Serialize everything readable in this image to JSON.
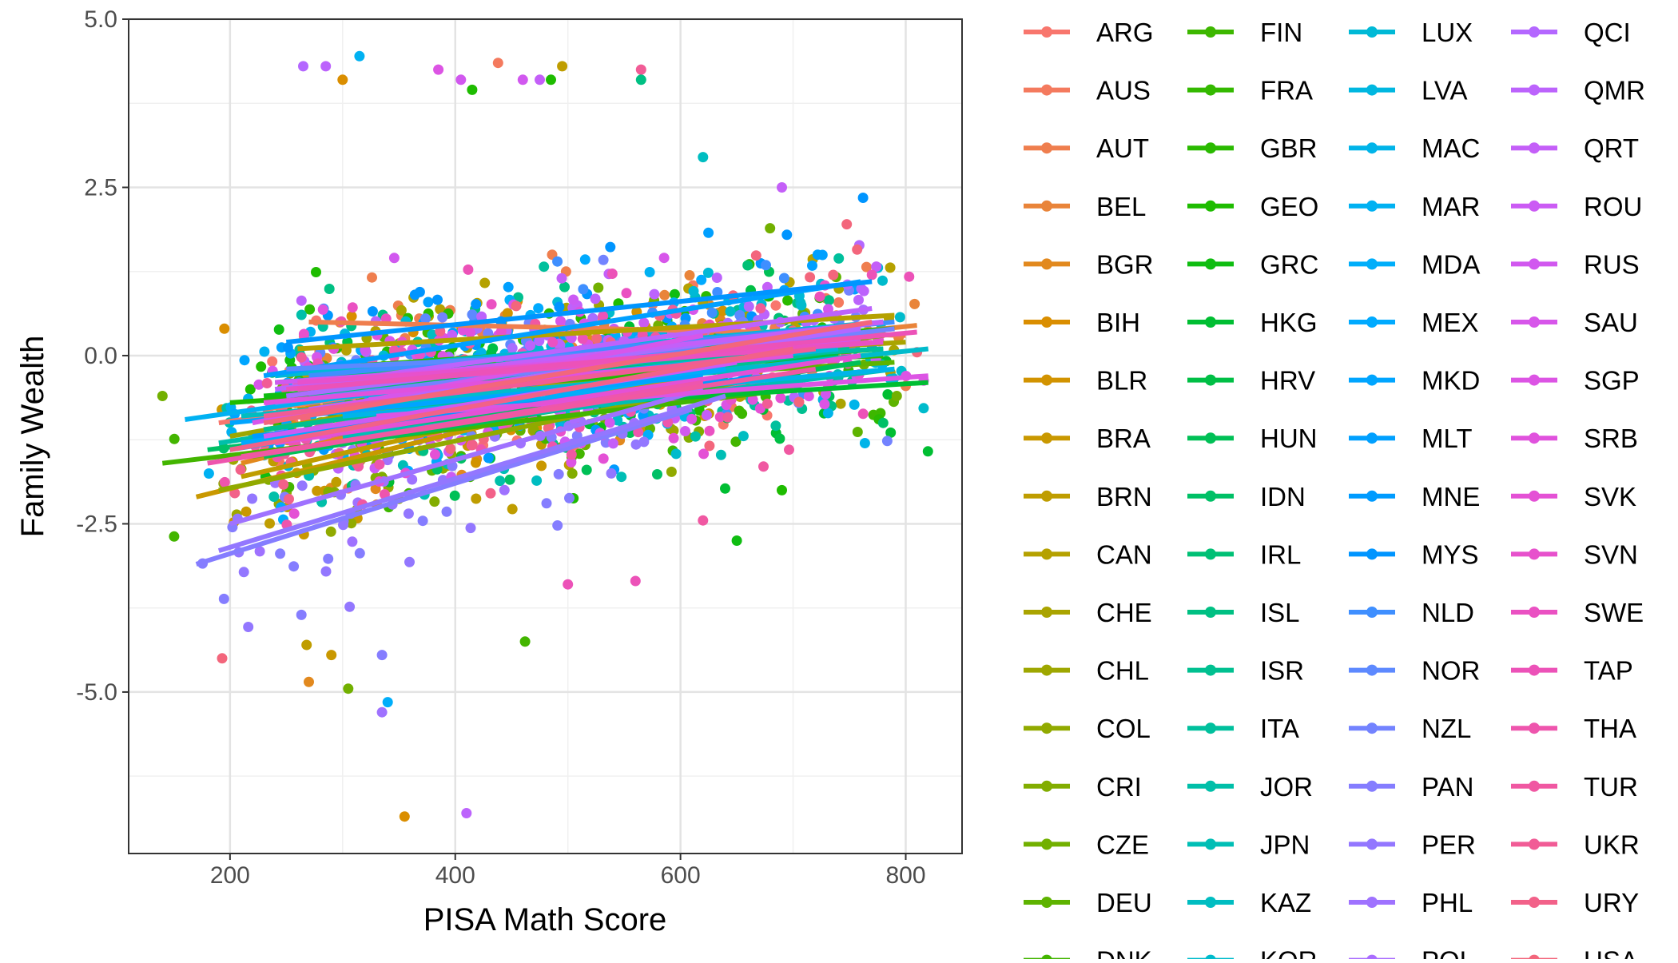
{
  "chart_data": {
    "type": "scatter",
    "title": "",
    "xlabel": "PISA Math Score",
    "ylabel": "Family Wealth",
    "xlim": [
      110,
      850
    ],
    "ylim": [
      -7.4,
      5.0
    ],
    "x_ticks": [
      200,
      400,
      600,
      800
    ],
    "x_tick_labels": [
      "200",
      "400",
      "600",
      "800"
    ],
    "y_ticks": [
      5.0,
      2.5,
      0.0,
      -2.5,
      -5.0
    ],
    "y_tick_labels": [
      "5.0",
      "2.5",
      "0.0",
      "-2.5",
      "-5.0"
    ],
    "grid": true,
    "legend_position": "right",
    "series_note_trend": "each country: points plus a linear fit line",
    "series": [
      {
        "name": "ARG",
        "color": "#F8766D",
        "line": [
          [
            190,
            -1.0
          ],
          [
            690,
            0.2
          ]
        ]
      },
      {
        "name": "AUS",
        "color": "#F47A5E",
        "line": [
          [
            230,
            -0.8
          ],
          [
            780,
            0.5
          ]
        ]
      },
      {
        "name": "AUT",
        "color": "#EF7E4E",
        "line": [
          [
            270,
            0.5
          ],
          [
            800,
            0.3
          ]
        ]
      },
      {
        "name": "BEL",
        "color": "#E98439",
        "line": [
          [
            250,
            -0.5
          ],
          [
            810,
            0.45
          ]
        ]
      },
      {
        "name": "BGR",
        "color": "#E2891E",
        "line": [
          [
            210,
            -1.6
          ],
          [
            640,
            0.2
          ]
        ]
      },
      {
        "name": "BIH",
        "color": "#DA8E00",
        "line": [
          [
            260,
            -0.8
          ],
          [
            620,
            -0.1
          ]
        ]
      },
      {
        "name": "BLR",
        "color": "#D29300",
        "line": [
          [
            230,
            -1.1
          ],
          [
            700,
            0.1
          ]
        ]
      },
      {
        "name": "BRA",
        "color": "#C99800",
        "line": [
          [
            170,
            -2.1
          ],
          [
            630,
            -0.2
          ]
        ]
      },
      {
        "name": "BRN",
        "color": "#BF9D00",
        "line": [
          [
            210,
            -1.8
          ],
          [
            650,
            -0.1
          ]
        ]
      },
      {
        "name": "CAN",
        "color": "#B5A100",
        "line": [
          [
            260,
            0.1
          ],
          [
            790,
            0.6
          ]
        ]
      },
      {
        "name": "CHE",
        "color": "#AAA400",
        "line": [
          [
            280,
            -0.3
          ],
          [
            800,
            0.2
          ]
        ]
      },
      {
        "name": "CHL",
        "color": "#9EA700",
        "line": [
          [
            200,
            -1.2
          ],
          [
            700,
            0.3
          ]
        ]
      },
      {
        "name": "COL",
        "color": "#91AA00",
        "line": [
          [
            190,
            -2.0
          ],
          [
            650,
            -0.4
          ]
        ]
      },
      {
        "name": "CRI",
        "color": "#82AD00",
        "line": [
          [
            220,
            -1.5
          ],
          [
            640,
            -0.3
          ]
        ]
      },
      {
        "name": "CZE",
        "color": "#72B000",
        "line": [
          [
            240,
            -0.9
          ],
          [
            780,
            0.3
          ]
        ]
      },
      {
        "name": "DEU",
        "color": "#5EB300",
        "line": [
          [
            250,
            -0.6
          ],
          [
            790,
            -0.1
          ]
        ]
      },
      {
        "name": "DNK",
        "color": "#43B500",
        "line": [
          [
            140,
            -1.6
          ],
          [
            700,
            -0.5
          ]
        ]
      },
      {
        "name": "FIN",
        "color": "#3DB700",
        "line": [
          [
            300,
            -0.5
          ],
          [
            780,
            0.1
          ]
        ]
      },
      {
        "name": "FRA",
        "color": "#34B900",
        "line": [
          [
            260,
            -0.4
          ],
          [
            780,
            0.0
          ]
        ]
      },
      {
        "name": "GBR",
        "color": "#2ABA00",
        "line": [
          [
            270,
            -0.2
          ],
          [
            790,
            0.4
          ]
        ]
      },
      {
        "name": "GEO",
        "color": "#1EBC00",
        "line": [
          [
            200,
            -0.7
          ],
          [
            640,
            -0.2
          ]
        ]
      },
      {
        "name": "GRC",
        "color": "#0FBD11",
        "line": [
          [
            230,
            -0.6
          ],
          [
            730,
            0.0
          ]
        ]
      },
      {
        "name": "HKG",
        "color": "#00BE32",
        "line": [
          [
            330,
            -0.9
          ],
          [
            820,
            -0.4
          ]
        ]
      },
      {
        "name": "HRV",
        "color": "#00BF45",
        "line": [
          [
            250,
            -0.5
          ],
          [
            740,
            0.0
          ]
        ]
      },
      {
        "name": "HUN",
        "color": "#00C056",
        "line": [
          [
            230,
            -1.5
          ],
          [
            760,
            -0.1
          ]
        ]
      },
      {
        "name": "IDN",
        "color": "#00C066",
        "line": [
          [
            180,
            -1.4
          ],
          [
            620,
            -0.5
          ]
        ]
      },
      {
        "name": "IRL",
        "color": "#00C075",
        "line": [
          [
            270,
            -0.6
          ],
          [
            750,
            0.2
          ]
        ]
      },
      {
        "name": "ISL",
        "color": "#00C083",
        "line": [
          [
            240,
            -0.4
          ],
          [
            760,
            0.3
          ]
        ]
      },
      {
        "name": "ISR",
        "color": "#00C090",
        "line": [
          [
            230,
            -1.1
          ],
          [
            750,
            0.1
          ]
        ]
      },
      {
        "name": "ITA",
        "color": "#00C09D",
        "line": [
          [
            260,
            -0.4
          ],
          [
            780,
            0.1
          ]
        ]
      },
      {
        "name": "JOR",
        "color": "#00BFA9",
        "line": [
          [
            190,
            -1.3
          ],
          [
            620,
            -0.2
          ]
        ]
      },
      {
        "name": "JPN",
        "color": "#00BEB5",
        "line": [
          [
            300,
            -1.2
          ],
          [
            790,
            -0.2
          ]
        ]
      },
      {
        "name": "KAZ",
        "color": "#00BDC1",
        "line": [
          [
            210,
            -0.9
          ],
          [
            660,
            -0.2
          ]
        ]
      },
      {
        "name": "KOR",
        "color": "#00BBCC",
        "line": [
          [
            300,
            -0.8
          ],
          [
            820,
            0.1
          ]
        ]
      },
      {
        "name": "LUX",
        "color": "#00B9D6",
        "line": [
          [
            240,
            -0.3
          ],
          [
            780,
            0.5
          ]
        ]
      },
      {
        "name": "LVA",
        "color": "#00B7E0",
        "line": [
          [
            250,
            -0.7
          ],
          [
            740,
            0.1
          ]
        ]
      },
      {
        "name": "MAC",
        "color": "#00B4E9",
        "line": [
          [
            300,
            -0.9
          ],
          [
            790,
            -0.2
          ]
        ]
      },
      {
        "name": "MAR",
        "color": "#00B1F2",
        "line": [
          [
            160,
            -0.95
          ],
          [
            600,
            0.1
          ]
        ]
      },
      {
        "name": "MDA",
        "color": "#00AEFA",
        "line": [
          [
            200,
            -1.4
          ],
          [
            640,
            -0.2
          ]
        ]
      },
      {
        "name": "MEX",
        "color": "#00AAFF",
        "line": [
          [
            210,
            -1.3
          ],
          [
            650,
            -0.1
          ]
        ]
      },
      {
        "name": "MKD",
        "color": "#00A5FF",
        "line": [
          [
            200,
            -1.0
          ],
          [
            620,
            -0.3
          ]
        ]
      },
      {
        "name": "MLT",
        "color": "#00A0FF",
        "line": [
          [
            230,
            -0.3
          ],
          [
            760,
            1.1
          ]
        ]
      },
      {
        "name": "MNE",
        "color": "#009BFF",
        "line": [
          [
            220,
            -1.2
          ],
          [
            680,
            -0.3
          ]
        ]
      },
      {
        "name": "MYS",
        "color": "#0095FF",
        "line": [
          [
            250,
            0.2
          ],
          [
            770,
            1.1
          ]
        ]
      },
      {
        "name": "NLD",
        "color": "#3F8FFF",
        "line": [
          [
            270,
            -0.3
          ],
          [
            790,
            0.5
          ]
        ]
      },
      {
        "name": "NOR",
        "color": "#5D89FF",
        "line": [
          [
            250,
            -0.2
          ],
          [
            760,
            0.2
          ]
        ]
      },
      {
        "name": "NZL",
        "color": "#7383FF",
        "line": [
          [
            240,
            -0.7
          ],
          [
            790,
            0.4
          ]
        ]
      },
      {
        "name": "PAN",
        "color": "#857DFF",
        "line": [
          [
            170,
            -3.1
          ],
          [
            610,
            -0.8
          ]
        ]
      },
      {
        "name": "PER",
        "color": "#9377FF",
        "line": [
          [
            190,
            -2.9
          ],
          [
            640,
            -0.6
          ]
        ]
      },
      {
        "name": "PHL",
        "color": "#9F72FF",
        "line": [
          [
            200,
            -2.5
          ],
          [
            620,
            -0.5
          ]
        ]
      },
      {
        "name": "POL",
        "color": "#AA6DFF",
        "line": [
          [
            250,
            -0.6
          ],
          [
            780,
            0.5
          ]
        ]
      },
      {
        "name": "QCI",
        "color": "#B467FF",
        "line": [
          [
            270,
            -0.8
          ],
          [
            760,
            0.4
          ]
        ]
      },
      {
        "name": "QMR",
        "color": "#BC63FC",
        "line": [
          [
            240,
            -0.5
          ],
          [
            770,
            0.7
          ]
        ]
      },
      {
        "name": "QRT",
        "color": "#C45FF8",
        "line": [
          [
            300,
            -0.4
          ],
          [
            780,
            0.5
          ]
        ]
      },
      {
        "name": "ROU",
        "color": "#CB5BF4",
        "line": [
          [
            230,
            -1.2
          ],
          [
            650,
            -0.1
          ]
        ]
      },
      {
        "name": "RUS",
        "color": "#D158EF",
        "line": [
          [
            240,
            -0.4
          ],
          [
            760,
            0.2
          ]
        ]
      },
      {
        "name": "SAU",
        "color": "#D756EA",
        "line": [
          [
            220,
            -1.0
          ],
          [
            620,
            0.3
          ]
        ]
      },
      {
        "name": "SGP",
        "color": "#DC54E4",
        "line": [
          [
            330,
            -0.9
          ],
          [
            820,
            -0.3
          ]
        ]
      },
      {
        "name": "SRB",
        "color": "#E052DD",
        "line": [
          [
            230,
            -0.7
          ],
          [
            700,
            0.0
          ]
        ]
      },
      {
        "name": "SVK",
        "color": "#E451D5",
        "line": [
          [
            240,
            -1.3
          ],
          [
            760,
            0.0
          ]
        ]
      },
      {
        "name": "SVN",
        "color": "#E751CC",
        "line": [
          [
            260,
            -0.4
          ],
          [
            780,
            0.2
          ]
        ]
      },
      {
        "name": "SWE",
        "color": "#EA51C2",
        "line": [
          [
            250,
            -0.5
          ],
          [
            770,
            0.2
          ]
        ]
      },
      {
        "name": "TAP",
        "color": "#EC52B8",
        "line": [
          [
            260,
            -0.5
          ],
          [
            810,
            0.35
          ]
        ]
      },
      {
        "name": "THA",
        "color": "#EE55AD",
        "line": [
          [
            180,
            -1.6
          ],
          [
            620,
            -0.4
          ]
        ]
      },
      {
        "name": "TUR",
        "color": "#F058A2",
        "line": [
          [
            210,
            -1.5
          ],
          [
            720,
            -0.2
          ]
        ]
      },
      {
        "name": "UKR",
        "color": "#F15C96",
        "line": [
          [
            230,
            -0.9
          ],
          [
            720,
            0.1
          ]
        ]
      },
      {
        "name": "URY",
        "color": "#F26189",
        "line": [
          [
            200,
            -1.4
          ],
          [
            700,
            0.1
          ]
        ]
      },
      {
        "name": "USA",
        "color": "#F3667C",
        "line": [
          [
            230,
            -1.0
          ],
          [
            770,
            0.5
          ]
        ]
      }
    ],
    "notable_points": [
      {
        "x": 300,
        "y": 4.1,
        "color": "#DA8E00"
      },
      {
        "x": 265,
        "y": 4.3,
        "color": "#B467FF"
      },
      {
        "x": 285,
        "y": 4.3,
        "color": "#BC63FC"
      },
      {
        "x": 315,
        "y": 4.45,
        "color": "#00B1F2"
      },
      {
        "x": 438,
        "y": 4.35,
        "color": "#F47A5E"
      },
      {
        "x": 495,
        "y": 4.3,
        "color": "#BF9D00"
      },
      {
        "x": 565,
        "y": 4.25,
        "color": "#F15C96"
      },
      {
        "x": 565,
        "y": 4.1,
        "color": "#00C083"
      },
      {
        "x": 475,
        "y": 4.1,
        "color": "#C45FF8"
      },
      {
        "x": 385,
        "y": 4.25,
        "color": "#DC54E4"
      },
      {
        "x": 405,
        "y": 4.1,
        "color": "#D158EF"
      },
      {
        "x": 460,
        "y": 4.1,
        "color": "#D158EF"
      },
      {
        "x": 415,
        "y": 3.95,
        "color": "#1EBC00"
      },
      {
        "x": 485,
        "y": 4.1,
        "color": "#1EBC00"
      },
      {
        "x": 355,
        "y": -6.85,
        "color": "#DA8E00"
      },
      {
        "x": 410,
        "y": -6.8,
        "color": "#BC63FC"
      },
      {
        "x": 340,
        "y": -5.15,
        "color": "#00AEFA"
      },
      {
        "x": 335,
        "y": -5.3,
        "color": "#9F72FF"
      },
      {
        "x": 305,
        "y": -4.95,
        "color": "#72B000"
      },
      {
        "x": 270,
        "y": -4.85,
        "color": "#E2891E"
      },
      {
        "x": 193,
        "y": -4.5,
        "color": "#F3667C"
      },
      {
        "x": 290,
        "y": -4.45,
        "color": "#C99800"
      },
      {
        "x": 268,
        "y": -4.3,
        "color": "#BF9D00"
      },
      {
        "x": 462,
        "y": -4.25,
        "color": "#43B500"
      },
      {
        "x": 335,
        "y": -4.45,
        "color": "#857DFF"
      },
      {
        "x": 140,
        "y": -0.6,
        "color": "#72B000"
      },
      {
        "x": 810,
        "y": 0.05,
        "color": "#F3667C"
      },
      {
        "x": 800,
        "y": -0.45,
        "color": "#EF7E4E"
      },
      {
        "x": 792,
        "y": -0.6,
        "color": "#72B000"
      },
      {
        "x": 770,
        "y": 1.2,
        "color": "#EC52B8"
      },
      {
        "x": 690,
        "y": 2.5,
        "color": "#C45FF8"
      },
      {
        "x": 620,
        "y": 2.95,
        "color": "#00BDC1"
      },
      {
        "x": 650,
        "y": -2.75,
        "color": "#0FBD11"
      },
      {
        "x": 690,
        "y": -2.0,
        "color": "#1EBC00"
      },
      {
        "x": 195,
        "y": 0.4,
        "color": "#DA8E00"
      },
      {
        "x": 770,
        "y": 0.15,
        "color": "#0095FF"
      },
      {
        "x": 560,
        "y": -3.35,
        "color": "#EC52B8"
      },
      {
        "x": 500,
        "y": -3.4,
        "color": "#EC52B8"
      },
      {
        "x": 620,
        "y": -2.45,
        "color": "#F058A2"
      },
      {
        "x": 780,
        "y": -1.0,
        "color": "#00C066"
      }
    ]
  }
}
